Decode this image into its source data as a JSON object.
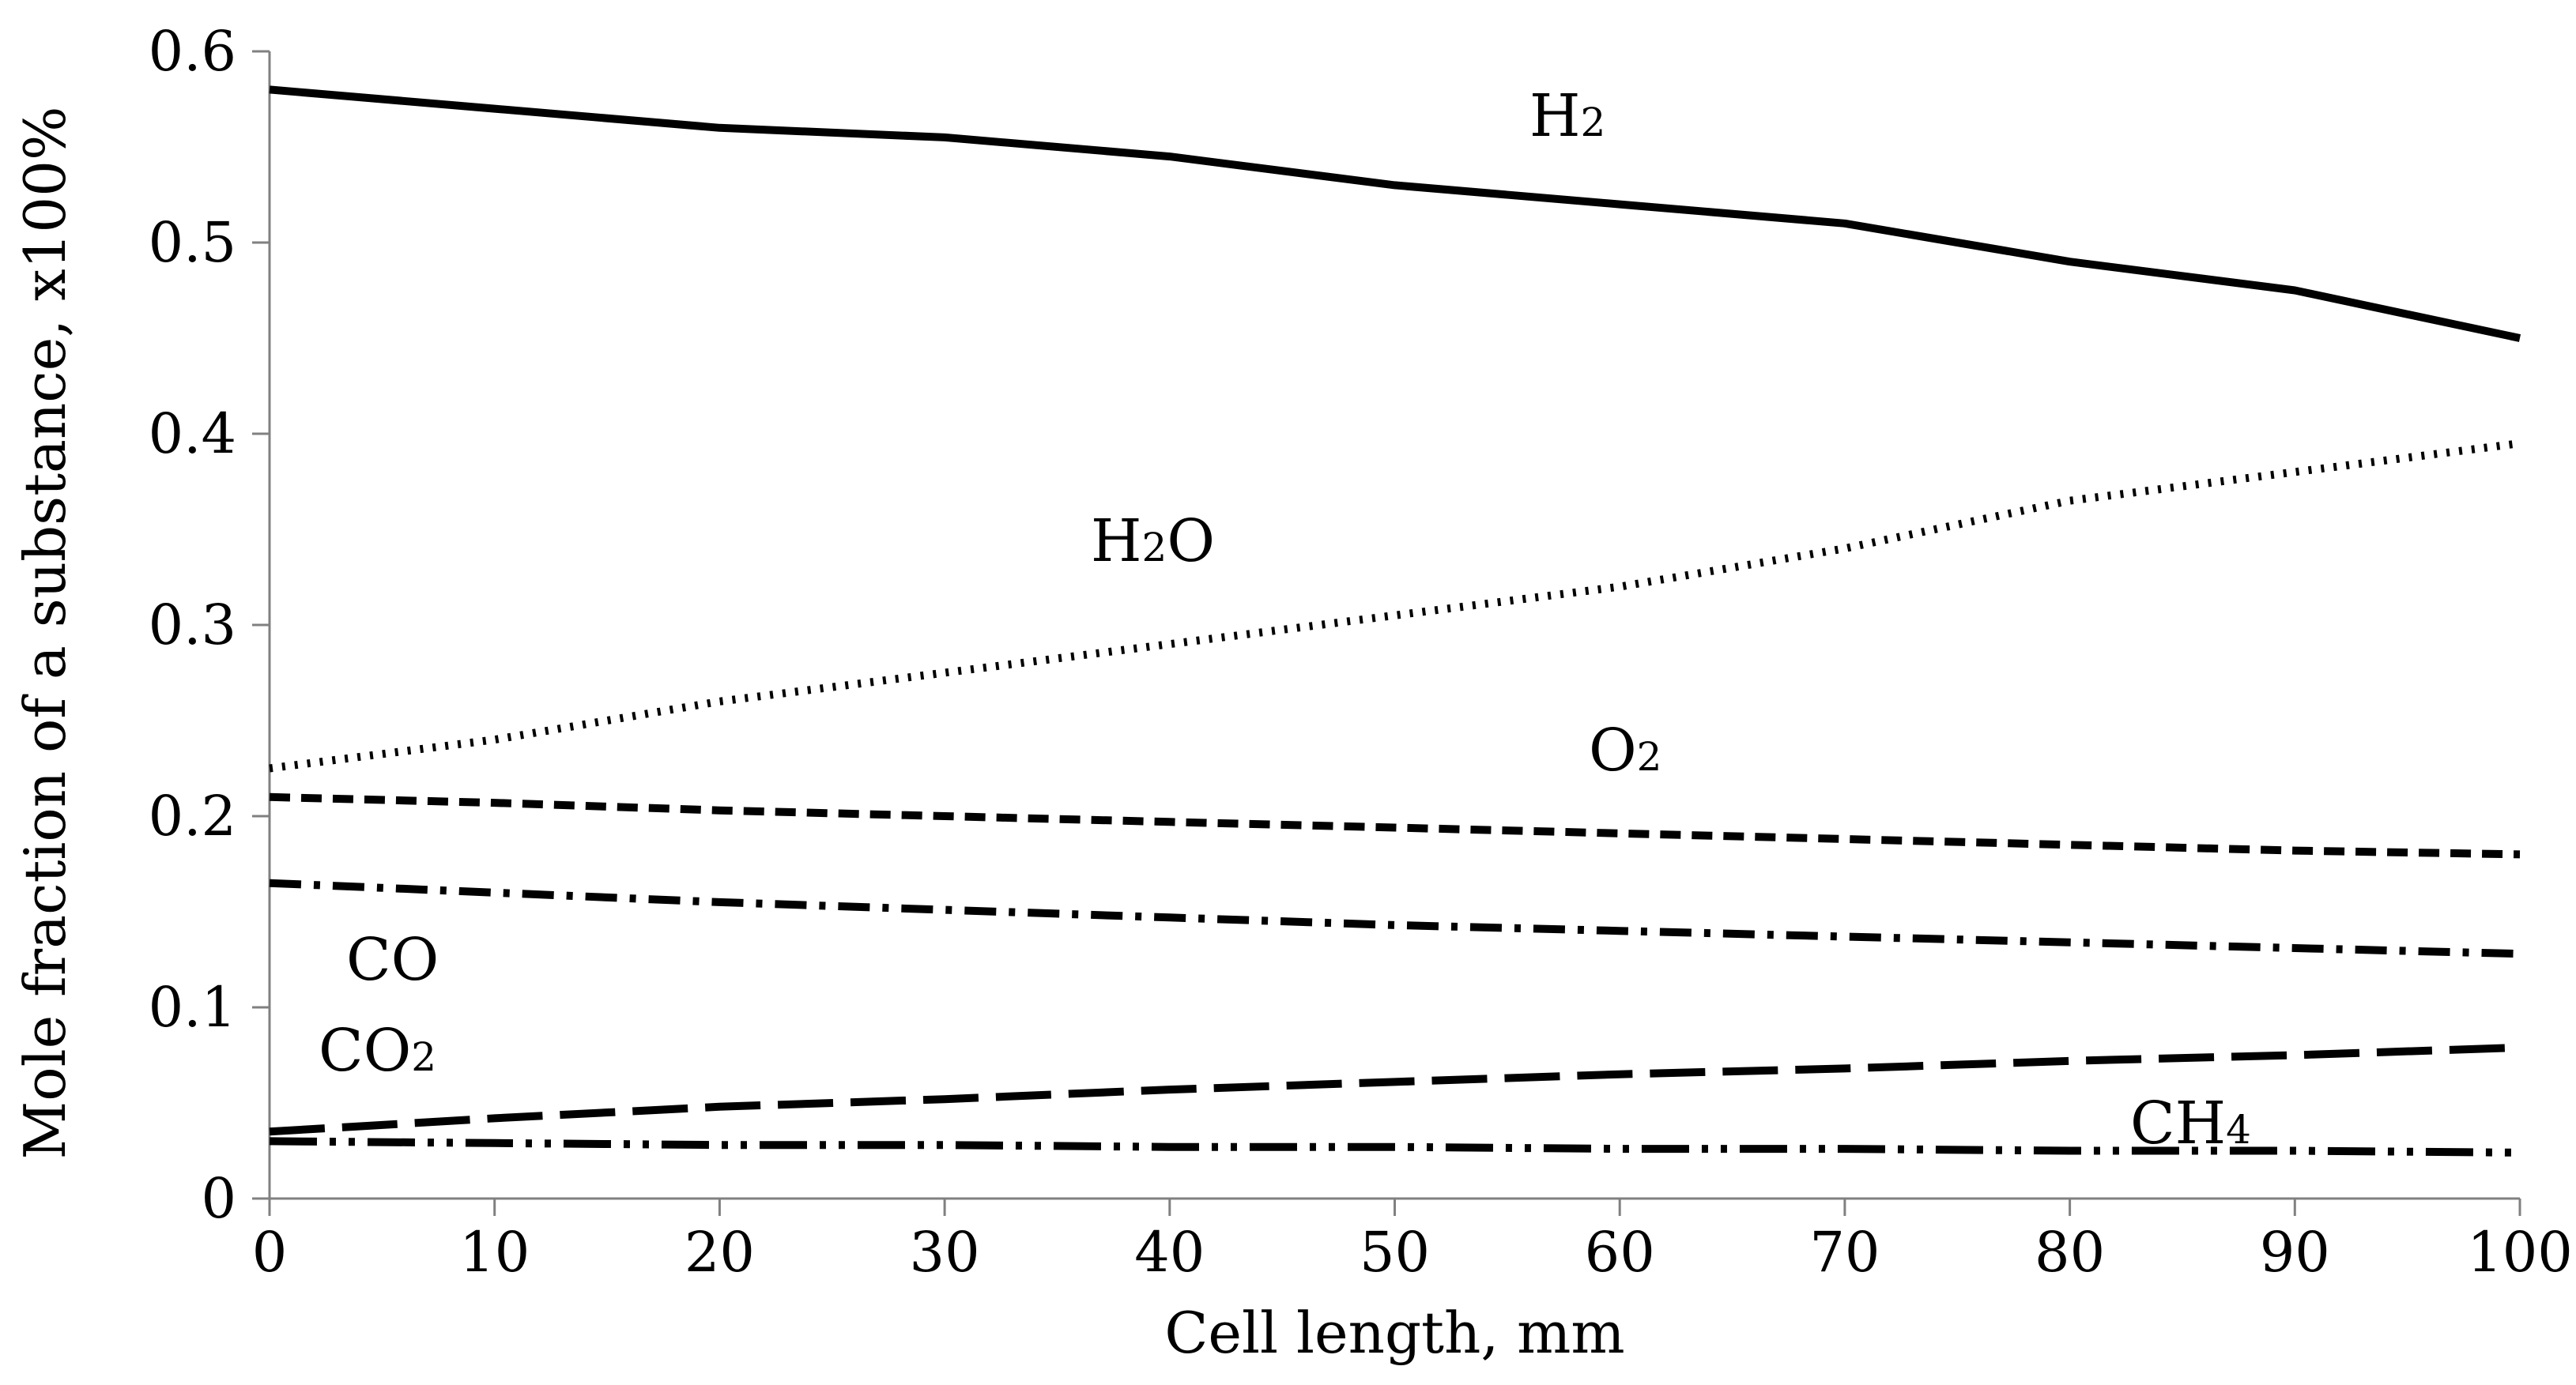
{
  "chart_data": {
    "type": "line",
    "title": "",
    "xlabel": "Cell length, mm",
    "ylabel": "Mole fraction of a substance, x100%",
    "xlim": [
      0,
      100
    ],
    "ylim": [
      0,
      0.6
    ],
    "x_ticks": [
      "0",
      "10",
      "20",
      "30",
      "40",
      "50",
      "60",
      "70",
      "80",
      "90",
      "100"
    ],
    "y_ticks": [
      "0",
      "0.1",
      "0.2",
      "0.3",
      "0.4",
      "0.5",
      "0.6"
    ],
    "grid": false,
    "x": [
      0,
      10,
      20,
      30,
      40,
      50,
      60,
      70,
      80,
      90,
      100
    ],
    "series": [
      {
        "name": "H2",
        "label_main": "H",
        "label_sub": "2",
        "label_tail": "",
        "style": "solid",
        "values": [
          0.58,
          0.57,
          0.56,
          0.555,
          0.545,
          0.53,
          0.52,
          0.51,
          0.49,
          0.475,
          0.45
        ]
      },
      {
        "name": "H2O",
        "label_main": "H",
        "label_sub": "2",
        "label_tail": "O",
        "style": "dotted",
        "values": [
          0.225,
          0.24,
          0.26,
          0.275,
          0.29,
          0.305,
          0.32,
          0.34,
          0.365,
          0.38,
          0.395
        ]
      },
      {
        "name": "O2",
        "label_main": "O",
        "label_sub": "2",
        "label_tail": "",
        "style": "dashed",
        "values": [
          0.21,
          0.207,
          0.203,
          0.2,
          0.197,
          0.194,
          0.191,
          0.188,
          0.185,
          0.182,
          0.18
        ]
      },
      {
        "name": "CO",
        "label_main": "CO",
        "label_sub": "",
        "label_tail": "",
        "style": "dash-dot",
        "values": [
          0.165,
          0.16,
          0.155,
          0.151,
          0.147,
          0.143,
          0.14,
          0.137,
          0.134,
          0.131,
          0.128
        ]
      },
      {
        "name": "CO2",
        "label_main": "CO",
        "label_sub": "2",
        "label_tail": "",
        "style": "long-dash",
        "values": [
          0.035,
          0.042,
          0.048,
          0.052,
          0.057,
          0.061,
          0.065,
          0.068,
          0.072,
          0.075,
          0.079
        ]
      },
      {
        "name": "CH4",
        "label_main": "CH",
        "label_sub": "4",
        "label_tail": "",
        "style": "long-dash-dot-dot",
        "values": [
          0.03,
          0.029,
          0.028,
          0.028,
          0.027,
          0.027,
          0.026,
          0.026,
          0.025,
          0.025,
          0.024
        ]
      }
    ]
  }
}
